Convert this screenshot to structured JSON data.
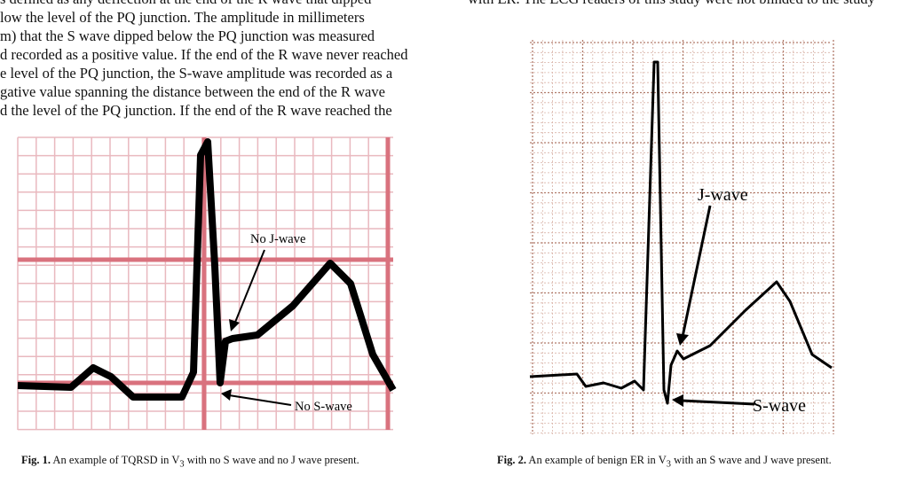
{
  "body": {
    "left_lines": [
      "s defined as any deflection at the end of the R wave that dipped",
      "low the level of the PQ junction. The amplitude in millimeters",
      "m) that the S wave dipped below the PQ junction was measured",
      "d recorded as a positive value. If the end of the R wave never reached",
      "e level of the PQ junction, the S-wave amplitude was recorded as a",
      "gative value spanning the distance between the end of the R wave",
      "d the level of the PQ junction. If the end of the R wave reached the"
    ],
    "right_top": "with ER. The ECG readers of this study were not blinded to the study"
  },
  "figures": [
    {
      "labels": [
        "No J-wave",
        "No S-wave"
      ],
      "caption": {
        "label": "Fig. 1.",
        "text": "An example of TQRSD in V",
        "sub": "3",
        "tail": "with no S wave and no J wave present."
      }
    },
    {
      "labels": [
        "J-wave",
        "S-wave"
      ],
      "caption": {
        "label": "Fig. 2.",
        "text": "An example of benign ER in V",
        "sub": "3",
        "tail": "with an S wave and J wave present."
      }
    }
  ]
}
